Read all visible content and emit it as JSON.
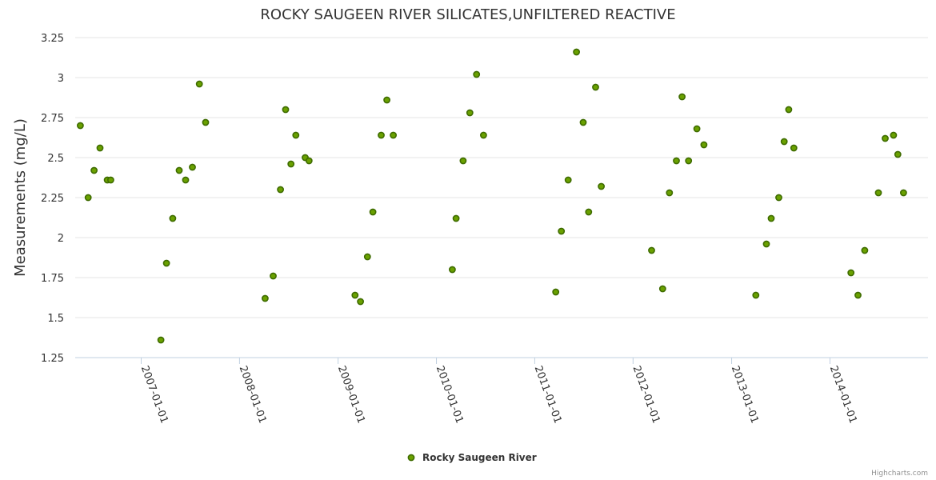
{
  "chart_data": {
    "type": "scatter",
    "title": "ROCKY SAUGEEN RIVER SILICATES,UNFILTERED REACTIVE",
    "ylabel": "Measurements (mg/L)",
    "xlabel": "",
    "ylim": [
      1.25,
      3.25
    ],
    "yticks": [
      "1.25",
      "1.5",
      "1.75",
      "2",
      "2.25",
      "2.5",
      "2.75",
      "3",
      "3.25"
    ],
    "xlim": [
      "2006-05-01",
      "2014-12-31"
    ],
    "xticks": [
      "2007-01-01",
      "2008-01-01",
      "2009-01-01",
      "2010-01-01",
      "2011-01-01",
      "2012-01-01",
      "2013-01-01",
      "2014-01-01"
    ],
    "legend_position": "bottom-center",
    "series": [
      {
        "name": "Rocky Saugeen River",
        "color": "#6aa100",
        "points": [
          [
            "2006-05-20",
            2.7
          ],
          [
            "2006-06-18",
            2.25
          ],
          [
            "2006-07-10",
            2.42
          ],
          [
            "2006-08-01",
            2.56
          ],
          [
            "2006-08-28",
            2.36
          ],
          [
            "2006-09-10",
            2.36
          ],
          [
            "2007-03-15",
            1.36
          ],
          [
            "2007-04-05",
            1.84
          ],
          [
            "2007-04-28",
            2.12
          ],
          [
            "2007-05-22",
            2.42
          ],
          [
            "2007-06-15",
            2.36
          ],
          [
            "2007-07-10",
            2.44
          ],
          [
            "2007-08-05",
            2.96
          ],
          [
            "2007-08-28",
            2.72
          ],
          [
            "2008-04-05",
            1.62
          ],
          [
            "2008-05-05",
            1.76
          ],
          [
            "2008-06-01",
            2.3
          ],
          [
            "2008-06-20",
            2.8
          ],
          [
            "2008-07-10",
            2.46
          ],
          [
            "2008-07-28",
            2.64
          ],
          [
            "2008-09-01",
            2.5
          ],
          [
            "2008-09-15",
            2.48
          ],
          [
            "2009-03-05",
            1.64
          ],
          [
            "2009-03-25",
            1.6
          ],
          [
            "2009-04-20",
            1.88
          ],
          [
            "2009-05-10",
            2.16
          ],
          [
            "2009-06-10",
            2.64
          ],
          [
            "2009-07-01",
            2.86
          ],
          [
            "2009-07-25",
            2.64
          ],
          [
            "2010-03-01",
            1.8
          ],
          [
            "2010-03-15",
            2.12
          ],
          [
            "2010-04-10",
            2.48
          ],
          [
            "2010-05-05",
            2.78
          ],
          [
            "2010-05-30",
            3.02
          ],
          [
            "2010-06-25",
            2.64
          ],
          [
            "2011-03-20",
            1.66
          ],
          [
            "2011-04-10",
            2.04
          ],
          [
            "2011-05-05",
            2.36
          ],
          [
            "2011-06-05",
            3.16
          ],
          [
            "2011-06-30",
            2.72
          ],
          [
            "2011-07-20",
            2.16
          ],
          [
            "2011-08-15",
            2.94
          ],
          [
            "2011-09-05",
            2.32
          ],
          [
            "2012-03-10",
            1.92
          ],
          [
            "2012-04-20",
            1.68
          ],
          [
            "2012-05-15",
            2.28
          ],
          [
            "2012-06-10",
            2.48
          ],
          [
            "2012-07-01",
            2.88
          ],
          [
            "2012-07-25",
            2.48
          ],
          [
            "2012-08-25",
            2.68
          ],
          [
            "2012-09-20",
            2.58
          ],
          [
            "2013-04-01",
            1.64
          ],
          [
            "2013-05-10",
            1.96
          ],
          [
            "2013-05-28",
            2.12
          ],
          [
            "2013-06-25",
            2.25
          ],
          [
            "2013-07-15",
            2.6
          ],
          [
            "2013-08-01",
            2.8
          ],
          [
            "2013-08-20",
            2.56
          ],
          [
            "2014-03-20",
            1.78
          ],
          [
            "2014-04-15",
            1.64
          ],
          [
            "2014-05-10",
            1.92
          ],
          [
            "2014-06-30",
            2.28
          ],
          [
            "2014-07-25",
            2.62
          ],
          [
            "2014-08-25",
            2.64
          ],
          [
            "2014-09-10",
            2.52
          ],
          [
            "2014-10-01",
            2.28
          ]
        ]
      }
    ]
  },
  "credits": "Highcharts.com"
}
